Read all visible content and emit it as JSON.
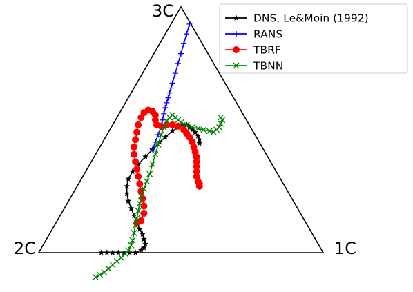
{
  "chart_data": {
    "type": "line",
    "plot": "barycentric-triangle",
    "vertices": {
      "three_c": "3C",
      "two_c": "2C",
      "one_c": "1C"
    },
    "legend": {
      "placement": "top-right"
    },
    "series": [
      {
        "name": "DNS, Le&Moin (1992)",
        "color": "#000000",
        "marker": "star",
        "points": [
          [
            0.22,
            0.0
          ],
          [
            0.24,
            0.0
          ],
          [
            0.26,
            0.0
          ],
          [
            0.28,
            0.0
          ],
          [
            0.3,
            0.0
          ],
          [
            0.32,
            0.0
          ],
          [
            0.34,
            0.0
          ],
          [
            0.36,
            0.01
          ],
          [
            0.37,
            0.02
          ],
          [
            0.375,
            0.035
          ],
          [
            0.37,
            0.055
          ],
          [
            0.365,
            0.075
          ],
          [
            0.355,
            0.095
          ],
          [
            0.345,
            0.12
          ],
          [
            0.335,
            0.15
          ],
          [
            0.325,
            0.18
          ],
          [
            0.315,
            0.21
          ],
          [
            0.31,
            0.24
          ],
          [
            0.31,
            0.27
          ],
          [
            0.315,
            0.3
          ],
          [
            0.33,
            0.33
          ],
          [
            0.35,
            0.36
          ],
          [
            0.375,
            0.39
          ],
          [
            0.4,
            0.42
          ],
          [
            0.425,
            0.45
          ],
          [
            0.445,
            0.47
          ],
          [
            0.47,
            0.495
          ],
          [
            0.49,
            0.51
          ],
          [
            0.505,
            0.52
          ],
          [
            0.52,
            0.52
          ],
          [
            0.53,
            0.51
          ],
          [
            0.54,
            0.5
          ],
          [
            0.55,
            0.49
          ],
          [
            0.56,
            0.475
          ],
          [
            0.565,
            0.46
          ],
          [
            0.565,
            0.445
          ]
        ]
      },
      {
        "name": "RANS",
        "color": "#0000ff",
        "marker": "plus",
        "points": [
          [
            0.4,
            0.42
          ],
          [
            0.41,
            0.45
          ],
          [
            0.42,
            0.48
          ],
          [
            0.43,
            0.51
          ],
          [
            0.435,
            0.54
          ],
          [
            0.44,
            0.565
          ],
          [
            0.445,
            0.59
          ],
          [
            0.45,
            0.61
          ],
          [
            0.455,
            0.63
          ],
          [
            0.46,
            0.65
          ],
          [
            0.465,
            0.67
          ],
          [
            0.47,
            0.69
          ],
          [
            0.48,
            0.73
          ],
          [
            0.49,
            0.77
          ],
          [
            0.5,
            0.81
          ],
          [
            0.51,
            0.85
          ],
          [
            0.52,
            0.89
          ],
          [
            0.53,
            0.93
          ]
        ]
      },
      {
        "name": "TBRF",
        "color": "#ff0000",
        "marker": "circle",
        "points": [
          [
            0.345,
            0.12
          ],
          [
            0.36,
            0.13
          ],
          [
            0.37,
            0.16
          ],
          [
            0.37,
            0.19
          ],
          [
            0.365,
            0.22
          ],
          [
            0.36,
            0.25
          ],
          [
            0.355,
            0.28
          ],
          [
            0.35,
            0.31
          ],
          [
            0.345,
            0.34
          ],
          [
            0.34,
            0.37
          ],
          [
            0.335,
            0.4
          ],
          [
            0.335,
            0.43
          ],
          [
            0.34,
            0.46
          ],
          [
            0.345,
            0.49
          ],
          [
            0.35,
            0.52
          ],
          [
            0.36,
            0.55
          ],
          [
            0.37,
            0.57
          ],
          [
            0.385,
            0.58
          ],
          [
            0.4,
            0.575
          ],
          [
            0.41,
            0.56
          ],
          [
            0.41,
            0.54
          ],
          [
            0.415,
            0.52
          ],
          [
            0.43,
            0.515
          ],
          [
            0.45,
            0.52
          ],
          [
            0.47,
            0.52
          ],
          [
            0.49,
            0.515
          ],
          [
            0.51,
            0.5
          ],
          [
            0.52,
            0.485
          ],
          [
            0.53,
            0.47
          ],
          [
            0.54,
            0.45
          ],
          [
            0.545,
            0.43
          ],
          [
            0.55,
            0.41
          ],
          [
            0.555,
            0.39
          ],
          [
            0.555,
            0.37
          ],
          [
            0.555,
            0.35
          ],
          [
            0.555,
            0.33
          ],
          [
            0.555,
            0.31
          ],
          [
            0.56,
            0.29
          ],
          [
            0.565,
            0.28
          ],
          [
            0.565,
            0.27
          ]
        ]
      },
      {
        "name": "TBNN",
        "color": "#008000",
        "marker": "x",
        "points": [
          [
            0.2,
            -0.1
          ],
          [
            0.215,
            -0.09
          ],
          [
            0.23,
            -0.08
          ],
          [
            0.245,
            -0.065
          ],
          [
            0.26,
            -0.05
          ],
          [
            0.275,
            -0.035
          ],
          [
            0.29,
            -0.02
          ],
          [
            0.305,
            -0.005
          ],
          [
            0.315,
            0.01
          ],
          [
            0.325,
            0.03
          ],
          [
            0.33,
            0.05
          ],
          [
            0.335,
            0.08
          ],
          [
            0.34,
            0.11
          ],
          [
            0.345,
            0.14
          ],
          [
            0.35,
            0.17
          ],
          [
            0.355,
            0.2
          ],
          [
            0.36,
            0.23
          ],
          [
            0.37,
            0.26
          ],
          [
            0.38,
            0.29
          ],
          [
            0.39,
            0.32
          ],
          [
            0.4,
            0.36
          ],
          [
            0.41,
            0.4
          ],
          [
            0.42,
            0.44
          ],
          [
            0.43,
            0.48
          ],
          [
            0.44,
            0.51
          ],
          [
            0.45,
            0.535
          ],
          [
            0.46,
            0.55
          ],
          [
            0.47,
            0.56
          ],
          [
            0.48,
            0.55
          ],
          [
            0.49,
            0.54
          ],
          [
            0.5,
            0.53
          ],
          [
            0.52,
            0.52
          ],
          [
            0.54,
            0.51
          ],
          [
            0.56,
            0.505
          ],
          [
            0.58,
            0.5
          ],
          [
            0.6,
            0.495
          ],
          [
            0.615,
            0.49
          ],
          [
            0.625,
            0.5
          ],
          [
            0.635,
            0.51
          ],
          [
            0.64,
            0.525
          ],
          [
            0.645,
            0.54
          ],
          [
            0.64,
            0.55
          ]
        ]
      }
    ]
  }
}
